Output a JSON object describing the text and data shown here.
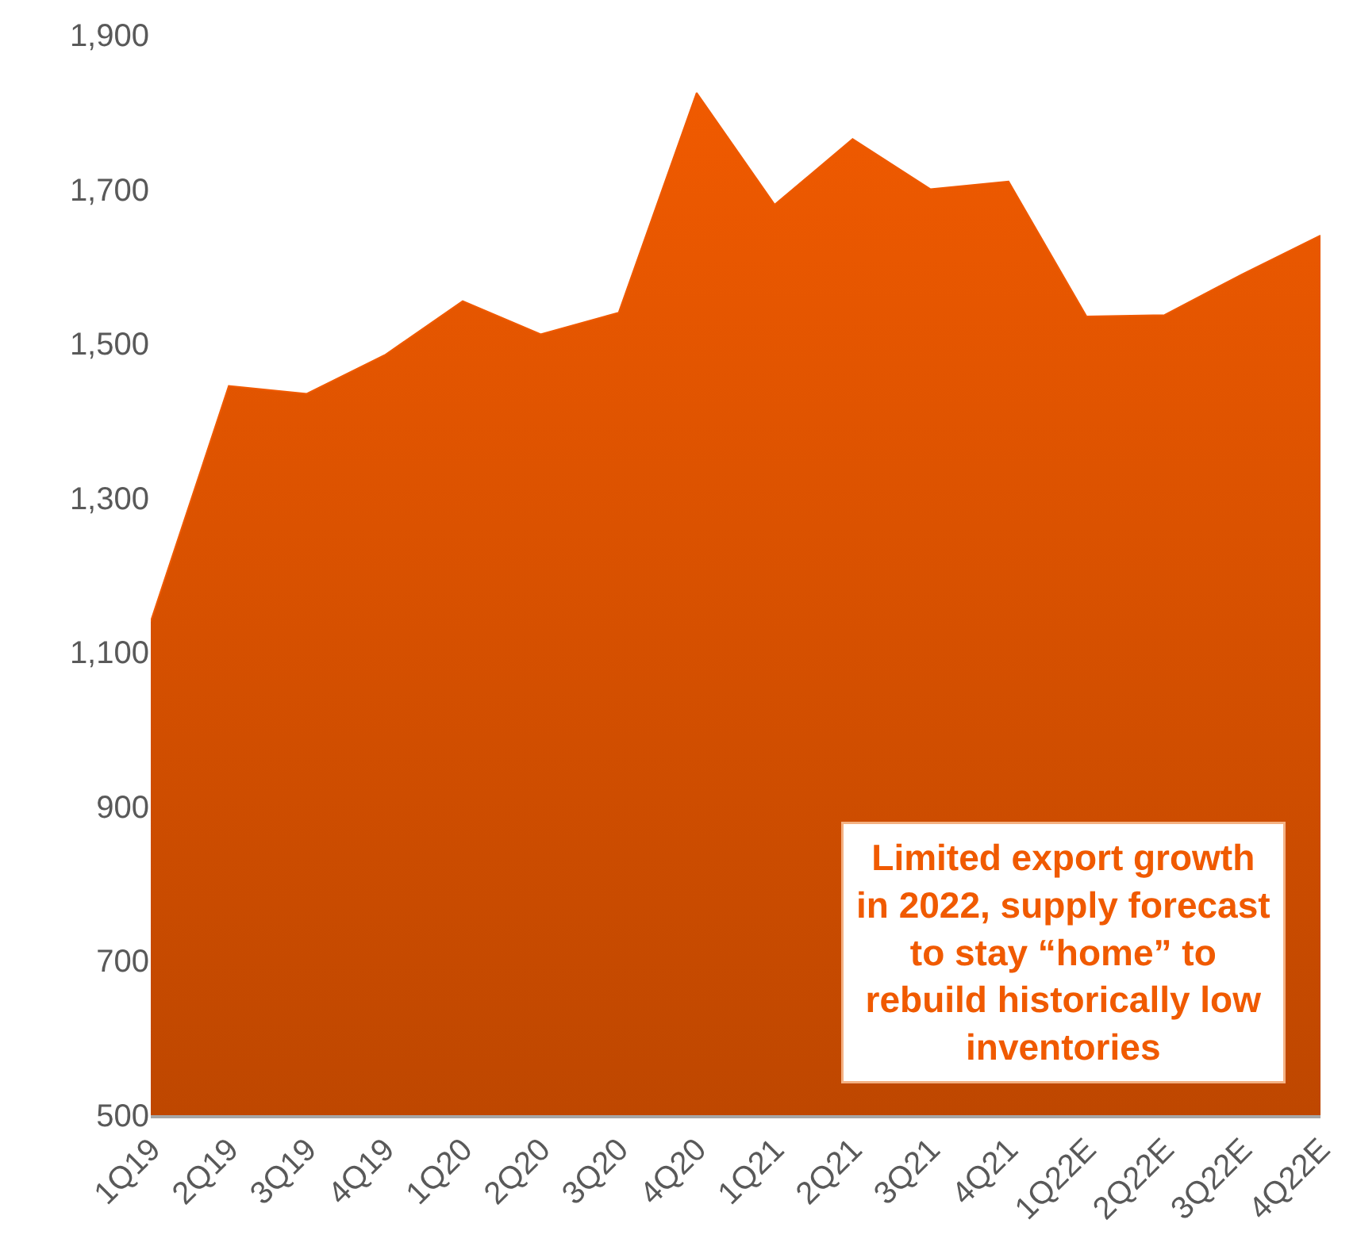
{
  "chart_data": {
    "type": "area",
    "categories": [
      "1Q19",
      "2Q19",
      "3Q19",
      "4Q19",
      "1Q20",
      "2Q20",
      "3Q20",
      "4Q20",
      "1Q21",
      "2Q21",
      "3Q21",
      "4Q21",
      "1Q22E",
      "2Q22E",
      "3Q22E",
      "4Q22E"
    ],
    "values": [
      1140,
      1445,
      1435,
      1485,
      1555,
      1512,
      1540,
      1825,
      1680,
      1765,
      1700,
      1710,
      1535,
      1537,
      1590,
      1640
    ],
    "color": "#f05a00",
    "ylim": [
      500,
      1900
    ],
    "yticks": [
      {
        "value": 500,
        "label": "500"
      },
      {
        "value": 700,
        "label": "700"
      },
      {
        "value": 900,
        "label": "900"
      },
      {
        "value": 1100,
        "label": "1,100"
      },
      {
        "value": 1300,
        "label": "1,300"
      },
      {
        "value": 1500,
        "label": "1,500"
      },
      {
        "value": 1700,
        "label": "1,700"
      },
      {
        "value": 1900,
        "label": "1,900"
      }
    ],
    "annotations": [
      "Limited export growth\nin 2022, supply forecast\nto stay “home” to\nrebuild historically low\ninventories"
    ]
  }
}
